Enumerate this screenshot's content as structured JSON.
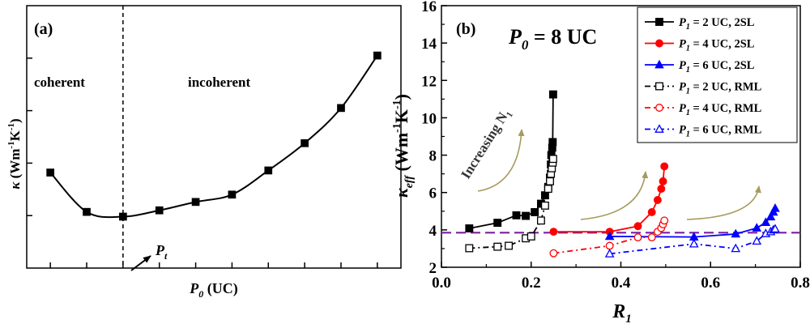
{
  "chart_data": [
    {
      "type": "line",
      "panel_label": "(a)",
      "xlabel_main": "P",
      "xlabel_sub": "0",
      "xlabel_unit": " (UC)",
      "ylabel_symbol": "κ",
      "ylabel_unit": " (Wm",
      "ylabel_exp1": "-1",
      "ylabel_mid": "K",
      "ylabel_exp2": "-1",
      "ylabel_close": ")",
      "regions": [
        "coherent",
        "incoherent"
      ],
      "marker_label_main": "P",
      "marker_label_sub": "t",
      "x": [
        1,
        2,
        3,
        4,
        5,
        6,
        7,
        8,
        9,
        10
      ],
      "y": [
        1.82,
        1.07,
        0.98,
        1.1,
        1.26,
        1.4,
        1.86,
        2.38,
        3.05,
        4.05
      ],
      "xlim": [
        0.35,
        10.65
      ],
      "ylim": [
        0,
        5
      ],
      "transition_x": 3,
      "xticks": [
        1,
        2,
        3,
        4,
        5,
        6,
        7,
        8,
        9,
        10
      ],
      "yticks": [
        1,
        2,
        3,
        4
      ],
      "tick_labels_shown": false
    },
    {
      "type": "line",
      "panel_label": "(b)",
      "title_main": "P",
      "title_sub": "0",
      "title_rest": " = 8 UC",
      "xlabel_main": "R",
      "xlabel_sub": "1",
      "ylabel_main": "κ",
      "ylabel_sub": "eff",
      "ylabel_unit": " (Wm",
      "ylabel_exp1": "-1",
      "ylabel_mid": "K",
      "ylabel_exp2": "-1",
      "ylabel_close": ")",
      "annotation": "Increasing N",
      "annotation_sub": "1",
      "xlim": [
        0,
        0.8
      ],
      "ylim": [
        2,
        16
      ],
      "xticks": [
        "0.0",
        "0.2",
        "0.4",
        "0.6",
        "0.8"
      ],
      "yticks": [
        "2",
        "4",
        "6",
        "8",
        "10",
        "12",
        "14",
        "16"
      ],
      "reference_line_y": 3.85,
      "legend_position": "top-right",
      "series": [
        {
          "name": "P1 = 2 UC, 2SL",
          "name_main": "P",
          "name_sub": "1",
          "name_rest": " = 2 UC, 2SL",
          "color": "#000000",
          "marker": "square",
          "filled": true,
          "dash": "solid",
          "x": [
            0.062,
            0.125,
            0.167,
            0.188,
            0.208,
            0.222,
            0.231,
            0.238,
            0.242,
            0.244,
            0.245,
            0.247,
            0.248,
            0.249
          ],
          "y": [
            4.08,
            4.38,
            4.78,
            4.75,
            4.95,
            5.4,
            5.85,
            6.3,
            6.8,
            7.5,
            8.0,
            8.4,
            8.7,
            11.25
          ]
        },
        {
          "name": "P1 = 4 UC, 2SL",
          "name_main": "P",
          "name_sub": "1",
          "name_rest": " = 4 UC, 2SL",
          "color": "#ff0000",
          "marker": "circle",
          "filled": true,
          "dash": "solid",
          "x": [
            0.25,
            0.375,
            0.438,
            0.469,
            0.482,
            0.49,
            0.494,
            0.497
          ],
          "y": [
            3.9,
            3.9,
            4.2,
            4.95,
            5.6,
            6.2,
            6.6,
            7.4
          ]
        },
        {
          "name": "P1 = 6 UC, 2SL",
          "name_main": "P",
          "name_sub": "1",
          "name_rest": " = 6 UC, 2SL",
          "color": "#0000ff",
          "marker": "triangle",
          "filled": true,
          "dash": "solid",
          "x": [
            0.375,
            0.563,
            0.656,
            0.703,
            0.723,
            0.734,
            0.74,
            0.744
          ],
          "y": [
            3.65,
            3.62,
            3.78,
            4.1,
            4.4,
            4.7,
            4.95,
            5.15
          ]
        },
        {
          "name": "P1 = 2 UC, RML",
          "name_main": "P",
          "name_sub": "1",
          "name_rest": " = 2 UC, RML",
          "color": "#000000",
          "marker": "square",
          "filled": false,
          "dash": "dash-dot",
          "x": [
            0.062,
            0.125,
            0.15,
            0.188,
            0.2,
            0.222,
            0.231,
            0.238,
            0.242,
            0.244,
            0.246,
            0.248,
            0.249
          ],
          "y": [
            3.02,
            3.1,
            3.15,
            3.55,
            3.65,
            4.5,
            5.3,
            6.2,
            6.6,
            7.0,
            7.3,
            7.6,
            7.8
          ]
        },
        {
          "name": "P1 = 4 UC, RML",
          "name_main": "P",
          "name_sub": "1",
          "name_rest": " = 4 UC, RML",
          "color": "#ff0000",
          "marker": "circle",
          "filled": false,
          "dash": "dash-dot",
          "x": [
            0.25,
            0.375,
            0.438,
            0.469,
            0.482,
            0.49,
            0.494,
            0.497
          ],
          "y": [
            2.75,
            3.15,
            3.6,
            3.6,
            3.9,
            4.1,
            4.3,
            4.5
          ]
        },
        {
          "name": "P1 = 6 UC, RML",
          "name_main": "P",
          "name_sub": "1",
          "name_rest": " = 6 UC, RML",
          "color": "#0000ff",
          "marker": "triangle",
          "filled": false,
          "dash": "dash-dot",
          "x": [
            0.375,
            0.563,
            0.656,
            0.703,
            0.723,
            0.734,
            0.74,
            0.744
          ],
          "y": [
            2.72,
            3.25,
            3.0,
            3.4,
            3.8,
            3.9,
            4.0,
            4.05
          ]
        }
      ]
    }
  ]
}
